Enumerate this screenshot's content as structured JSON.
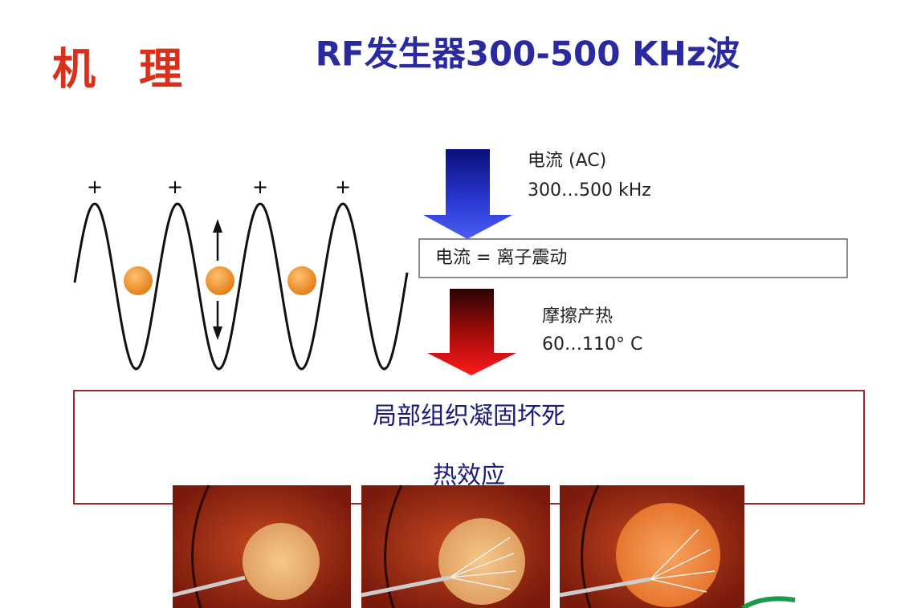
{
  "header": {
    "title": "机　理",
    "subtitle": "RF发生器300-500 KHz波"
  },
  "wave": {
    "plus_signs": [
      "+",
      "+",
      "+",
      "+"
    ]
  },
  "current": {
    "label": "电流 (AC)",
    "frequency": "300…500 kHz"
  },
  "box1": {
    "text": "电流 = 离子震动"
  },
  "heat": {
    "label": "摩擦产热",
    "temperature": "60…110° C"
  },
  "box2": {
    "line1": "局部组织凝固坏死",
    "line2": "热效应"
  }
}
